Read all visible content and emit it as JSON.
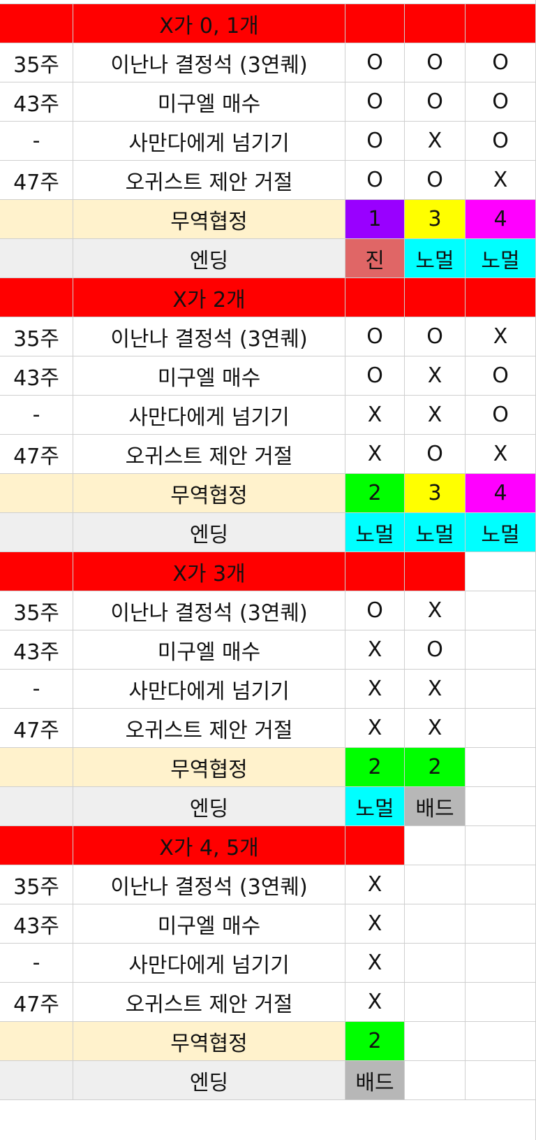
{
  "colors": {
    "header": "#ff0000",
    "trade": "#fff2cc",
    "ending_label": "#efefef",
    "purple": "#9900ff",
    "yellow": "#ffff00",
    "magenta": "#ff00ff",
    "green": "#00ff00",
    "true_end": "#e06666",
    "cyan": "#00ffff",
    "gray": "#b7b7b7"
  },
  "sections": [
    {
      "header": "X가 0, 1개",
      "rows": [
        {
          "week": "35주",
          "label": "이난나 결정석 (3연퀘)",
          "values": [
            "O",
            "O",
            "O"
          ]
        },
        {
          "week": "43주",
          "label": "미구엘 매수",
          "values": [
            "O",
            "O",
            "O"
          ]
        },
        {
          "week": "-",
          "label": "사만다에게 넘기기",
          "values": [
            "O",
            "X",
            "O"
          ]
        },
        {
          "week": "47주",
          "label": "오귀스트 제안 거절",
          "values": [
            "O",
            "O",
            "X"
          ]
        }
      ],
      "trade_label": "무역협정",
      "trade": [
        {
          "value": "1",
          "color": "purple"
        },
        {
          "value": "3",
          "color": "yellow"
        },
        {
          "value": "4",
          "color": "magenta"
        }
      ],
      "ending_label": "엔딩",
      "endings": [
        {
          "value": "진",
          "color": "true_end"
        },
        {
          "value": "노멀",
          "color": "cyan"
        },
        {
          "value": "노멀",
          "color": "cyan"
        }
      ]
    },
    {
      "header": "X가 2개",
      "rows": [
        {
          "week": "35주",
          "label": "이난나 결정석 (3연퀘)",
          "values": [
            "O",
            "O",
            "X"
          ]
        },
        {
          "week": "43주",
          "label": "미구엘 매수",
          "values": [
            "O",
            "X",
            "O"
          ]
        },
        {
          "week": "-",
          "label": "사만다에게 넘기기",
          "values": [
            "X",
            "X",
            "O"
          ]
        },
        {
          "week": "47주",
          "label": "오귀스트 제안 거절",
          "values": [
            "X",
            "O",
            "X"
          ]
        }
      ],
      "trade_label": "무역협정",
      "trade": [
        {
          "value": "2",
          "color": "green"
        },
        {
          "value": "3",
          "color": "yellow"
        },
        {
          "value": "4",
          "color": "magenta"
        }
      ],
      "ending_label": "엔딩",
      "endings": [
        {
          "value": "노멀",
          "color": "cyan"
        },
        {
          "value": "노멀",
          "color": "cyan"
        },
        {
          "value": "노멀",
          "color": "cyan"
        }
      ]
    },
    {
      "header": "X가 3개",
      "rows": [
        {
          "week": "35주",
          "label": "이난나 결정석 (3연퀘)",
          "values": [
            "O",
            "X"
          ]
        },
        {
          "week": "43주",
          "label": "미구엘 매수",
          "values": [
            "X",
            "O"
          ]
        },
        {
          "week": "-",
          "label": "사만다에게 넘기기",
          "values": [
            "X",
            "X"
          ]
        },
        {
          "week": "47주",
          "label": "오귀스트 제안 거절",
          "values": [
            "X",
            "X"
          ]
        }
      ],
      "trade_label": "무역협정",
      "trade": [
        {
          "value": "2",
          "color": "green"
        },
        {
          "value": "2",
          "color": "green"
        }
      ],
      "ending_label": "엔딩",
      "endings": [
        {
          "value": "노멀",
          "color": "cyan"
        },
        {
          "value": "배드",
          "color": "gray"
        }
      ]
    },
    {
      "header": "X가 4, 5개",
      "rows": [
        {
          "week": "35주",
          "label": "이난나 결정석 (3연퀘)",
          "values": [
            "X"
          ]
        },
        {
          "week": "43주",
          "label": "미구엘 매수",
          "values": [
            "X"
          ]
        },
        {
          "week": "-",
          "label": "사만다에게 넘기기",
          "values": [
            "X"
          ]
        },
        {
          "week": "47주",
          "label": "오귀스트 제안 거절",
          "values": [
            "X"
          ]
        }
      ],
      "trade_label": "무역협정",
      "trade": [
        {
          "value": "2",
          "color": "green"
        }
      ],
      "ending_label": "엔딩",
      "endings": [
        {
          "value": "배드",
          "color": "gray"
        }
      ]
    }
  ]
}
